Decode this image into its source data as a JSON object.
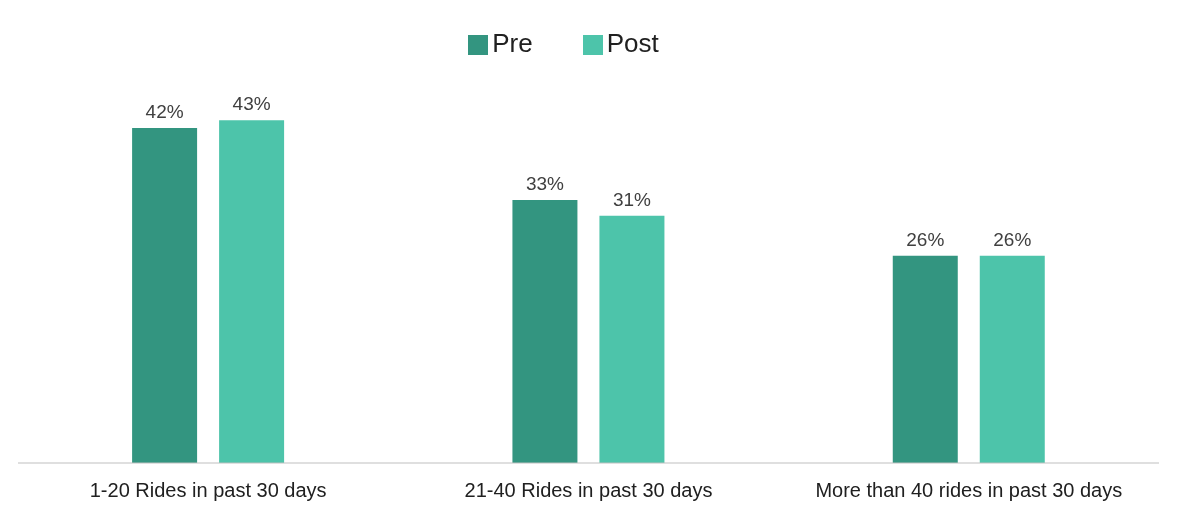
{
  "chart_data": {
    "type": "bar",
    "categories": [
      "1-20 Rides in past 30 days",
      "21-40 Rides in past 30 days",
      "More than 40 rides in past 30 days"
    ],
    "series": [
      {
        "name": "Pre",
        "color": "#339580",
        "values": [
          42,
          33,
          26
        ],
        "value_labels": [
          "42%",
          "33%",
          "26%"
        ]
      },
      {
        "name": "Post",
        "color": "#4dc4aa",
        "values": [
          43,
          31,
          26
        ],
        "value_labels": [
          "43%",
          "31%",
          "26%"
        ]
      }
    ],
    "legend": "top",
    "grid": false
  }
}
